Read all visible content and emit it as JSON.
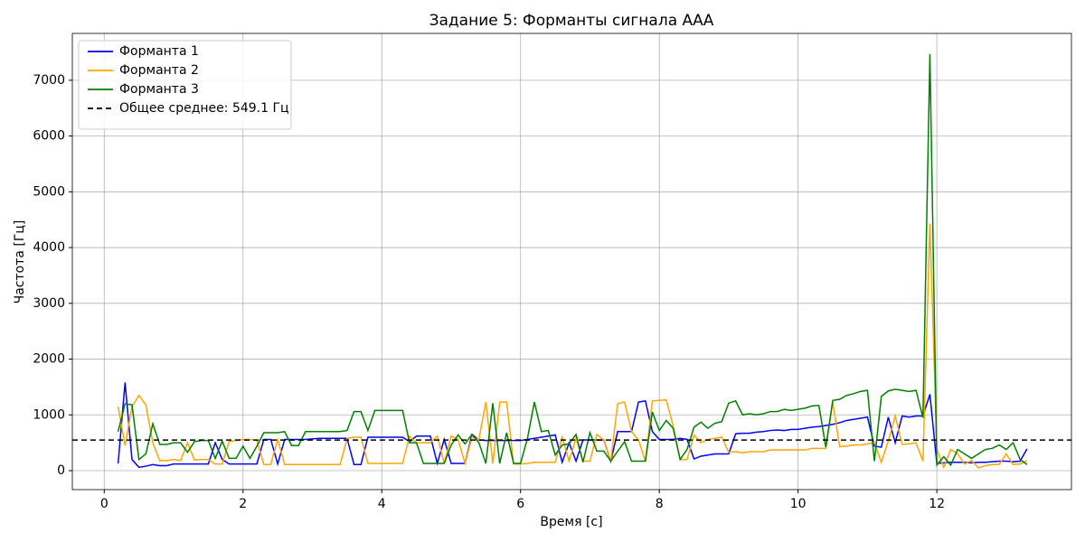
{
  "chart_data": {
    "type": "line",
    "title": "Задание 5: Форманты сигнала ААА",
    "x_label": "Время [с]",
    "y_label": "Частота [Гц]",
    "xlim": [
      -0.46,
      13.94
    ],
    "ylim": [
      -340,
      7840
    ],
    "xticks": [
      0,
      2,
      4,
      6,
      8,
      10,
      12
    ],
    "yticks": [
      0,
      1000,
      2000,
      3000,
      4000,
      5000,
      6000,
      7000
    ],
    "grid": true,
    "legend": "upper left",
    "x": [
      0.2,
      0.3,
      0.4,
      0.5,
      0.6,
      0.7,
      0.8,
      0.9,
      1.0,
      1.1,
      1.2,
      1.3,
      1.4,
      1.5,
      1.6,
      1.7,
      1.8,
      1.9,
      2.0,
      2.1,
      2.2,
      2.3,
      2.4,
      2.5,
      2.6,
      2.7,
      2.8,
      2.9,
      3.0,
      3.1,
      3.2,
      3.3,
      3.4,
      3.5,
      3.6,
      3.7,
      3.8,
      3.9,
      4.0,
      4.1,
      4.2,
      4.3,
      4.4,
      4.5,
      4.6,
      4.7,
      4.8,
      4.9,
      5.0,
      5.1,
      5.2,
      5.3,
      5.4,
      5.5,
      5.6,
      5.7,
      5.8,
      5.9,
      6.0,
      6.1,
      6.2,
      6.3,
      6.4,
      6.5,
      6.6,
      6.7,
      6.8,
      6.9,
      7.0,
      7.1,
      7.2,
      7.3,
      7.4,
      7.5,
      7.6,
      7.7,
      7.8,
      7.9,
      8.0,
      8.1,
      8.2,
      8.3,
      8.4,
      8.5,
      8.6,
      8.7,
      8.8,
      8.9,
      9.0,
      9.1,
      9.2,
      9.3,
      9.4,
      9.5,
      9.6,
      9.7,
      9.8,
      9.9,
      10.0,
      10.1,
      10.2,
      10.3,
      10.4,
      10.5,
      10.6,
      10.7,
      10.8,
      10.9,
      11.0,
      11.1,
      11.2,
      11.3,
      11.4,
      11.5,
      11.6,
      11.7,
      11.8,
      11.9,
      12.0,
      12.1,
      12.2,
      12.3,
      12.4,
      12.5,
      12.6,
      12.7,
      12.8,
      12.9,
      13.0,
      13.1,
      13.2,
      13.3
    ],
    "series": [
      {
        "name": "Форманта 1",
        "color": "#0000ff",
        "values": [
          130,
          1580,
          200,
          60,
          80,
          110,
          90,
          90,
          120,
          120,
          120,
          120,
          120,
          120,
          500,
          200,
          120,
          120,
          120,
          120,
          120,
          560,
          560,
          120,
          560,
          560,
          560,
          560,
          570,
          580,
          580,
          580,
          580,
          580,
          110,
          110,
          600,
          600,
          600,
          600,
          600,
          600,
          520,
          620,
          620,
          620,
          130,
          560,
          130,
          130,
          130,
          650,
          550,
          540,
          540,
          540,
          540,
          540,
          540,
          560,
          580,
          600,
          620,
          640,
          150,
          500,
          170,
          550,
          550,
          550,
          550,
          170,
          700,
          700,
          700,
          1230,
          1250,
          700,
          560,
          560,
          560,
          580,
          560,
          210,
          260,
          280,
          300,
          300,
          300,
          660,
          670,
          670,
          690,
          700,
          720,
          730,
          720,
          740,
          740,
          760,
          780,
          790,
          810,
          830,
          860,
          900,
          920,
          940,
          960,
          440,
          420,
          960,
          500,
          980,
          960,
          980,
          980,
          1370,
          130,
          140,
          150,
          150,
          150,
          140,
          150,
          150,
          160,
          170,
          170,
          160,
          170,
          390
        ]
      },
      {
        "name": "Форманта 2",
        "color": "#ffa500",
        "values": [
          1150,
          450,
          1150,
          1350,
          1180,
          500,
          180,
          180,
          200,
          180,
          500,
          190,
          200,
          200,
          120,
          120,
          520,
          540,
          560,
          560,
          540,
          110,
          110,
          560,
          110,
          110,
          110,
          110,
          110,
          110,
          110,
          110,
          110,
          580,
          600,
          600,
          130,
          130,
          130,
          130,
          130,
          130,
          620,
          500,
          500,
          500,
          620,
          130,
          620,
          560,
          130,
          600,
          560,
          1230,
          130,
          1230,
          1230,
          120,
          120,
          130,
          150,
          150,
          150,
          150,
          600,
          170,
          580,
          170,
          170,
          650,
          550,
          170,
          1200,
          1230,
          700,
          550,
          170,
          1250,
          1260,
          1270,
          800,
          200,
          200,
          640,
          500,
          560,
          580,
          600,
          330,
          340,
          320,
          340,
          340,
          340,
          370,
          370,
          370,
          370,
          370,
          370,
          400,
          400,
          400,
          1230,
          430,
          440,
          460,
          460,
          480,
          500,
          150,
          530,
          980,
          470,
          480,
          500,
          170,
          4430,
          380,
          60,
          380,
          300,
          120,
          180,
          50,
          90,
          110,
          110,
          300,
          110,
          120,
          180
        ]
      },
      {
        "name": "Форманта 3",
        "color": "#008000",
        "values": [
          700,
          1200,
          1180,
          200,
          300,
          840,
          470,
          470,
          500,
          500,
          330,
          520,
          540,
          540,
          220,
          530,
          220,
          220,
          440,
          220,
          440,
          680,
          680,
          680,
          700,
          450,
          450,
          700,
          700,
          700,
          700,
          700,
          700,
          720,
          1060,
          1060,
          720,
          1080,
          1080,
          1080,
          1080,
          1080,
          500,
          500,
          130,
          130,
          130,
          130,
          460,
          640,
          480,
          650,
          500,
          130,
          1210,
          130,
          680,
          130,
          130,
          580,
          1230,
          700,
          720,
          280,
          460,
          480,
          650,
          150,
          680,
          350,
          350,
          170,
          350,
          520,
          170,
          170,
          170,
          1050,
          720,
          900,
          760,
          200,
          380,
          780,
          870,
          760,
          850,
          880,
          1210,
          1250,
          1000,
          1020,
          1000,
          1020,
          1060,
          1060,
          1100,
          1080,
          1100,
          1120,
          1160,
          1170,
          420,
          1260,
          1280,
          1350,
          1380,
          1420,
          1440,
          170,
          1330,
          1430,
          1460,
          1440,
          1420,
          1440,
          950,
          7470,
          100,
          250,
          100,
          380,
          300,
          220,
          300,
          380,
          400,
          460,
          380,
          500,
          200,
          110
        ]
      }
    ],
    "mean_line": {
      "name": "Общее среднее: 549.1 Гц",
      "value": 549.1,
      "color": "#000000"
    }
  }
}
